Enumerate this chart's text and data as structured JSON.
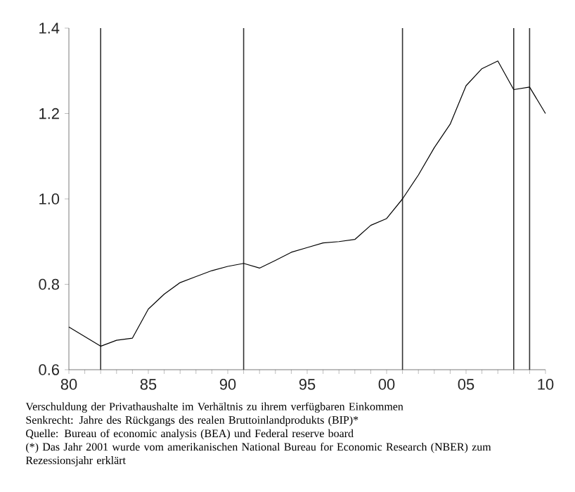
{
  "chart_data": {
    "type": "line",
    "x": [
      1980,
      1982,
      1983,
      1984,
      1985,
      1986,
      1987,
      1988,
      1989,
      1990,
      1991,
      1992,
      1993,
      1994,
      1995,
      1996,
      1997,
      1998,
      1999,
      2000,
      2001,
      2002,
      2003,
      2004,
      2005,
      2006,
      2007,
      2008,
      2009,
      2010
    ],
    "values": [
      0.7,
      0.655,
      0.669,
      0.674,
      0.742,
      0.777,
      0.804,
      0.818,
      0.832,
      0.842,
      0.849,
      0.838,
      0.856,
      0.875,
      0.886,
      0.897,
      0.9,
      0.905,
      0.938,
      0.954,
      1.0,
      1.056,
      1.12,
      1.175,
      1.265,
      1.305,
      1.323,
      1.256,
      1.262,
      1.2
    ],
    "color": "#000000",
    "xlim": [
      1980,
      2010
    ],
    "ylim": [
      0.6,
      1.4
    ],
    "xticks": [
      {
        "value": 1980,
        "label": "80"
      },
      {
        "value": 1981,
        "label": null
      },
      {
        "value": 1982,
        "label": null
      },
      {
        "value": 1983,
        "label": null
      },
      {
        "value": 1984,
        "label": null
      },
      {
        "value": 1985,
        "label": "85"
      },
      {
        "value": 1986,
        "label": null
      },
      {
        "value": 1987,
        "label": null
      },
      {
        "value": 1988,
        "label": null
      },
      {
        "value": 1989,
        "label": null
      },
      {
        "value": 1990,
        "label": "90"
      },
      {
        "value": 1991,
        "label": null
      },
      {
        "value": 1992,
        "label": null
      },
      {
        "value": 1993,
        "label": null
      },
      {
        "value": 1994,
        "label": null
      },
      {
        "value": 1995,
        "label": "95"
      },
      {
        "value": 1996,
        "label": null
      },
      {
        "value": 1997,
        "label": null
      },
      {
        "value": 1998,
        "label": null
      },
      {
        "value": 1999,
        "label": null
      },
      {
        "value": 2000,
        "label": "00"
      },
      {
        "value": 2001,
        "label": null
      },
      {
        "value": 2002,
        "label": null
      },
      {
        "value": 2003,
        "label": null
      },
      {
        "value": 2004,
        "label": null
      },
      {
        "value": 2005,
        "label": "05"
      },
      {
        "value": 2006,
        "label": null
      },
      {
        "value": 2007,
        "label": null
      },
      {
        "value": 2008,
        "label": null
      },
      {
        "value": 2009,
        "label": null
      },
      {
        "value": 2010,
        "label": "10"
      }
    ],
    "yticks": [
      {
        "value": 0.6,
        "label": "0.6"
      },
      {
        "value": 0.8,
        "label": "0.8"
      },
      {
        "value": 1.0,
        "label": "1.0"
      },
      {
        "value": 1.2,
        "label": "1.2"
      },
      {
        "value": 1.4,
        "label": "1.4"
      }
    ],
    "ref_lines": [
      {
        "axis": "x",
        "value": 1982
      },
      {
        "axis": "x",
        "value": 1991
      },
      {
        "axis": "x",
        "value": 2001
      },
      {
        "axis": "x",
        "value": 2008
      },
      {
        "axis": "x",
        "value": 2009
      }
    ],
    "annotations": [
      "Verschuldung der Privathaushalte im Verhältnis zu ihrem verfügbaren Einkommen",
      "Senkrecht: Jahre des Rückgangs des realen Bruttoinlandprodukts (BIP)*",
      "Quelle: Bureau of economic analysis (BEA) und Federal reserve board",
      "(*) Das Jahr 2001 wurde vom amerikanischen National Bureau for Economic Research (NBER) zum Rezessionsjahr erklärt"
    ],
    "grid": false,
    "marker": "none",
    "line_style": "solid"
  }
}
